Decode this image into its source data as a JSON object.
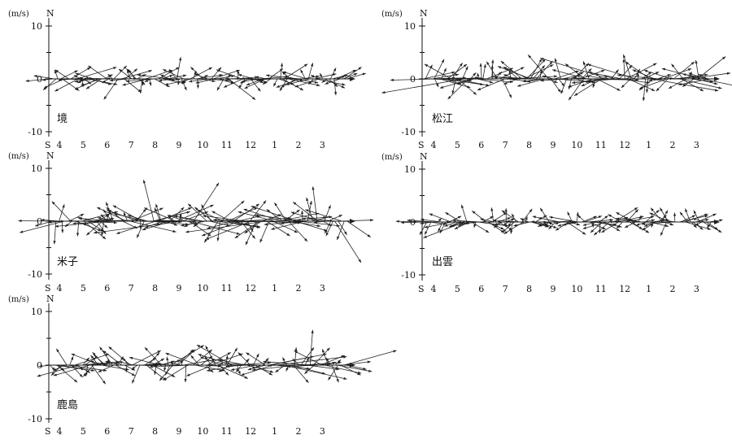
{
  "chart_data": [
    {
      "type": "stick",
      "station": "境",
      "ylabel": "(m/s)",
      "north_label": "N",
      "south_label": "S",
      "ylim": [
        -10,
        10
      ],
      "yticks": [
        10,
        0,
        -10
      ],
      "months": [
        "4",
        "5",
        "6",
        "7",
        "8",
        "9",
        "10",
        "11",
        "12",
        "1",
        "2",
        "3"
      ],
      "amplitude": 2.2,
      "seed": 11
    },
    {
      "type": "stick",
      "station": "松江",
      "ylabel": "(m/s)",
      "north_label": "N",
      "south_label": "S",
      "ylim": [
        -10,
        10
      ],
      "yticks": [
        10,
        0,
        -10
      ],
      "months": [
        "4",
        "5",
        "6",
        "7",
        "8",
        "9",
        "10",
        "11",
        "12",
        "1",
        "2",
        "3"
      ],
      "amplitude": 3.0,
      "seed": 23
    },
    {
      "type": "stick",
      "station": "米子",
      "ylabel": "(m/s)",
      "north_label": "N",
      "south_label": "S",
      "ylim": [
        -10,
        10
      ],
      "yticks": [
        10,
        0,
        -10
      ],
      "months": [
        "4",
        "5",
        "6",
        "7",
        "8",
        "9",
        "10",
        "11",
        "12",
        "1",
        "2",
        "3"
      ],
      "amplitude": 3.2,
      "seed": 37
    },
    {
      "type": "stick",
      "station": "出雲",
      "ylabel": "(m/s)",
      "north_label": "N",
      "south_label": "S",
      "ylim": [
        -10,
        10
      ],
      "yticks": [
        10,
        0,
        -10
      ],
      "months": [
        "4",
        "5",
        "6",
        "7",
        "8",
        "9",
        "10",
        "11",
        "12",
        "1",
        "2",
        "3"
      ],
      "amplitude": 2.0,
      "seed": 41
    },
    {
      "type": "stick",
      "station": "鹿島",
      "ylabel": "(m/s)",
      "north_label": "N",
      "south_label": "S",
      "ylim": [
        -10,
        10
      ],
      "yticks": [
        10,
        0,
        -10
      ],
      "months": [
        "4",
        "5",
        "6",
        "7",
        "8",
        "9",
        "10",
        "11",
        "12",
        "1",
        "2",
        "3"
      ],
      "amplitude": 2.6,
      "seed": 53
    }
  ]
}
